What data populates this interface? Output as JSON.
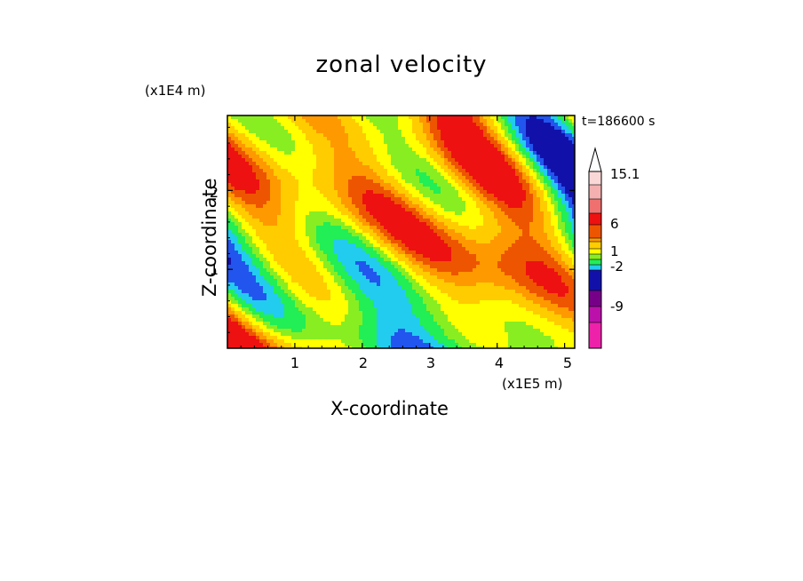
{
  "chart_data": {
    "type": "heatmap",
    "title": "zonal velocity",
    "xlabel": "X-coordinate",
    "ylabel": "Z-coordinate",
    "x_unit": "(x1E5 m)",
    "y_unit": "(x1E4 m)",
    "annotation": "t=186600 s",
    "xlim": [
      0,
      5.15
    ],
    "ylim": [
      0,
      2.95
    ],
    "x_ticks": [
      "1",
      "2",
      "3",
      "4",
      "5"
    ],
    "x_tick_values": [
      1,
      2,
      3,
      4,
      5
    ],
    "y_ticks": [
      "1",
      "2"
    ],
    "y_tick_values": [
      1,
      2
    ],
    "colorbar": {
      "labels": [
        "15.1",
        "6",
        "1",
        "-2",
        "-9"
      ],
      "label_values": [
        15.1,
        6,
        1,
        -2,
        -9
      ],
      "colors": [
        "#ee22aa",
        "#bb11aa",
        "#770088",
        "#1111aa",
        "#2255ee",
        "#22ccee",
        "#22ee55",
        "#88ee22",
        "#ffff00",
        "#ffcc00",
        "#ff9900",
        "#ee5500",
        "#ee1111",
        "#f07070",
        "#f4b0b0",
        "#fbd8d8"
      ]
    },
    "grid": false,
    "legend": "right"
  }
}
